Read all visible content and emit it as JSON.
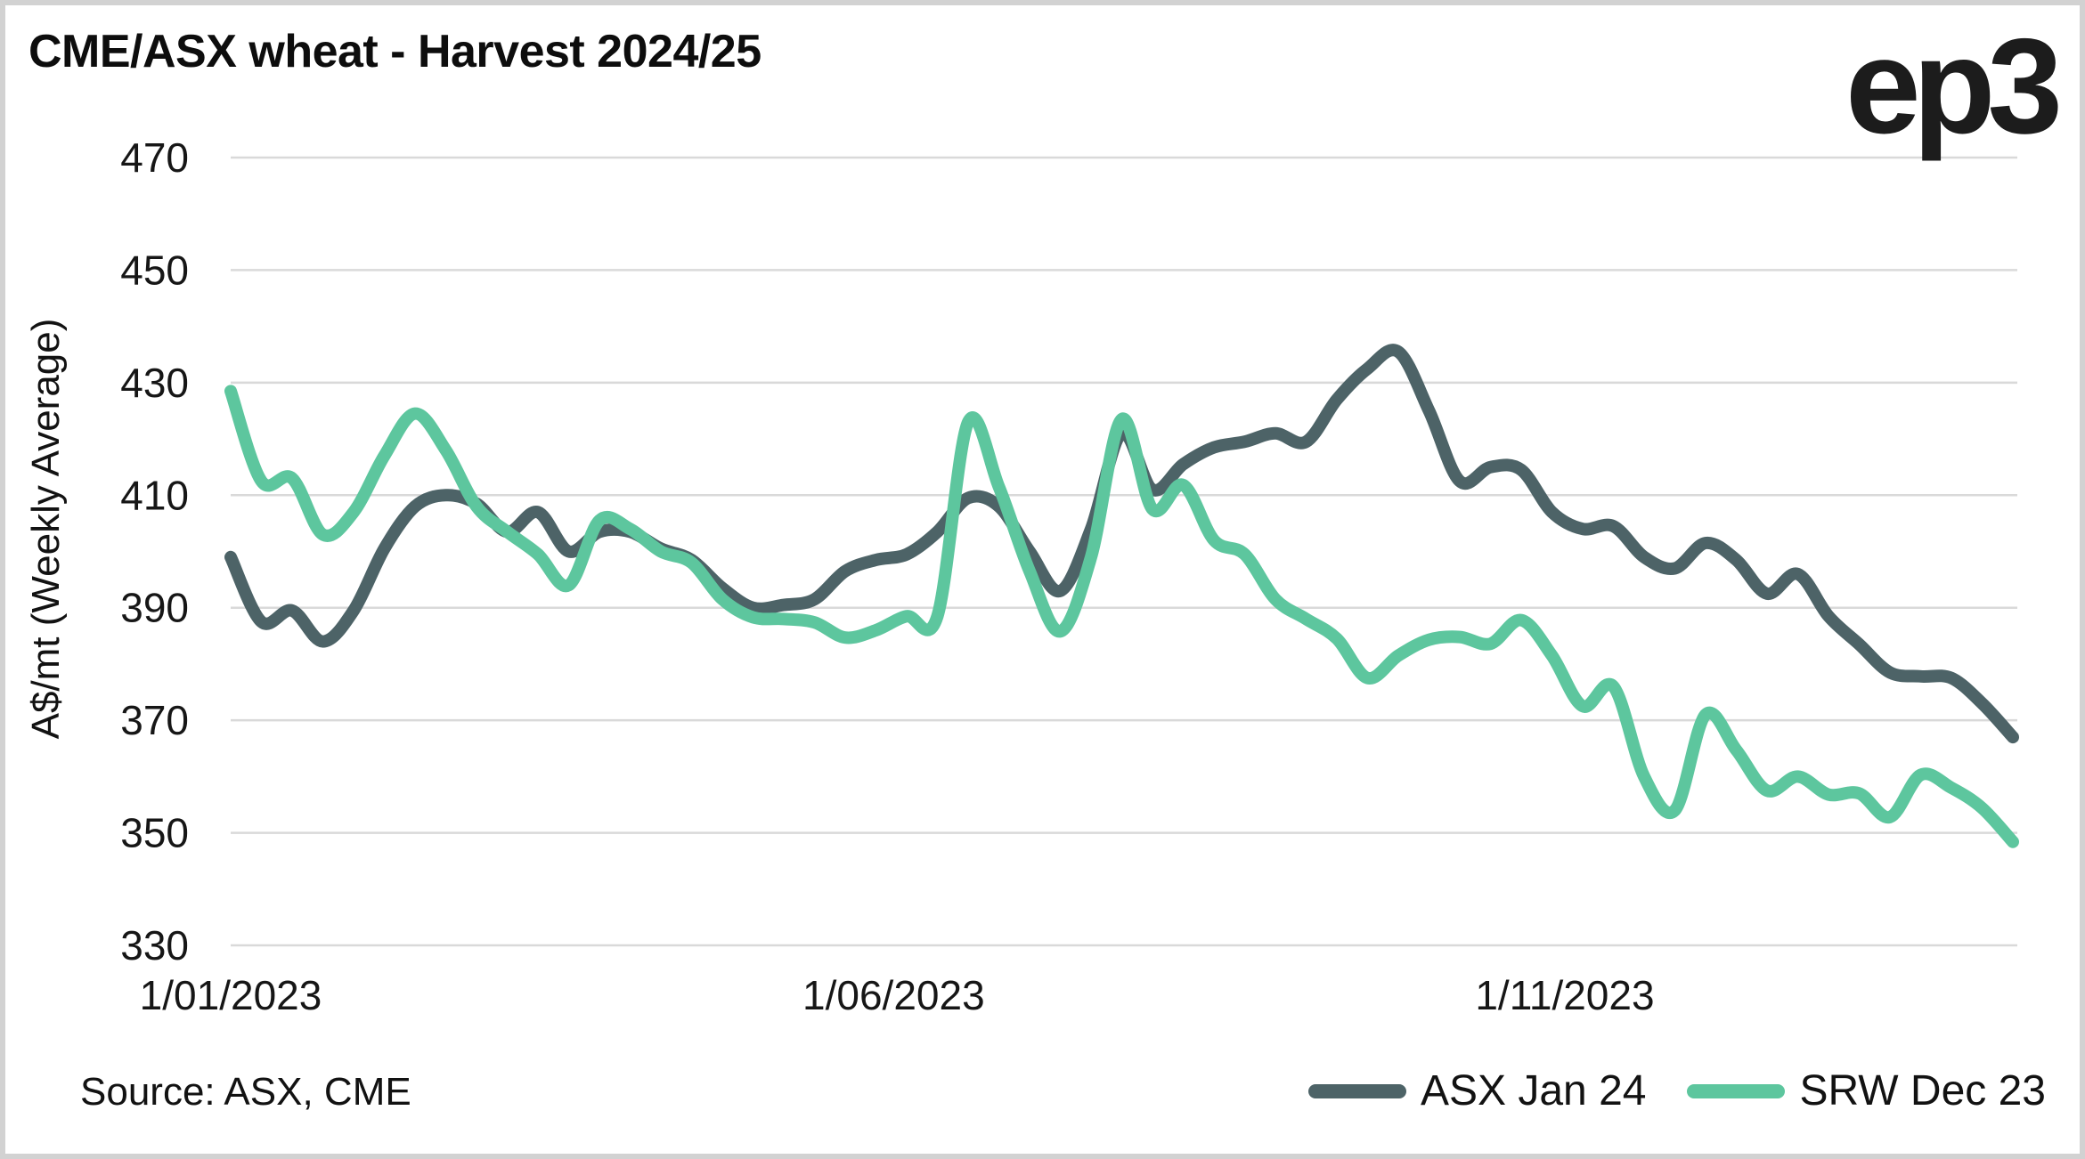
{
  "header": {
    "title": "CME/ASX wheat - Harvest 2024/25",
    "logo_text": "ep3"
  },
  "footer": {
    "source": "Source: ASX, CME"
  },
  "colors": {
    "asx_line": "#4d6367",
    "srw_line": "#5dc69e",
    "gridline": "#d9d9d9",
    "background": "#ffffff",
    "border": "#d2d2d2",
    "text": "#121212"
  },
  "chart_data": {
    "type": "line",
    "title": "CME/ASX wheat - Harvest 2024/25",
    "xlabel": "",
    "ylabel": "A$/mt (Weekly Average)",
    "ylim": [
      330,
      470
    ],
    "yticks": [
      470,
      450,
      430,
      410,
      390,
      370,
      350,
      330
    ],
    "xticks": [
      {
        "label": "1/01/2023",
        "pos": 0
      },
      {
        "label": "1/06/2023",
        "pos": 0.372
      },
      {
        "label": "1/11/2023",
        "pos": 0.7486
      }
    ],
    "x_unit": "week",
    "n_points": 59,
    "grid": "horizontal",
    "legend_position": "bottom-right",
    "series": [
      {
        "name": "ASX Jan 24",
        "color": "#4d6367",
        "values": [
          399,
          387.5,
          389.5,
          384,
          389.5,
          400.5,
          408,
          410,
          408.5,
          403.5,
          407,
          400,
          403.5,
          403.5,
          400.5,
          398.5,
          393.5,
          390,
          390.5,
          391.5,
          396.5,
          398.5,
          399.5,
          403.5,
          409.5,
          408,
          400,
          393,
          404,
          421,
          411,
          415.5,
          418.5,
          419.5,
          421,
          419.5,
          427,
          432.5,
          435.5,
          425,
          412.5,
          415,
          414.5,
          407,
          404,
          404.5,
          399,
          397,
          401.5,
          398.5,
          392.5,
          396,
          388.5,
          383.5,
          378.5,
          377.8,
          377.5,
          373,
          367
        ]
      },
      {
        "name": "SRW Dec 23",
        "color": "#5dc69e",
        "values": [
          428.5,
          412.5,
          413,
          403,
          407,
          417,
          424.5,
          418,
          408,
          403.5,
          399.5,
          394,
          405.5,
          404,
          400,
          398,
          391.5,
          388.3,
          388,
          387.4,
          384.7,
          386,
          388.5,
          388.5,
          423,
          411.5,
          396.5,
          385.8,
          399,
          423.5,
          407.5,
          411.8,
          402,
          399.5,
          391.5,
          388,
          384.5,
          377.5,
          381.5,
          384.3,
          384.8,
          383.6,
          387.8,
          381.5,
          372.5,
          376,
          360,
          354,
          371,
          364.7,
          357.5,
          360,
          356.8,
          357,
          352.8,
          360.3,
          358,
          354.4,
          348.4
        ]
      }
    ]
  }
}
